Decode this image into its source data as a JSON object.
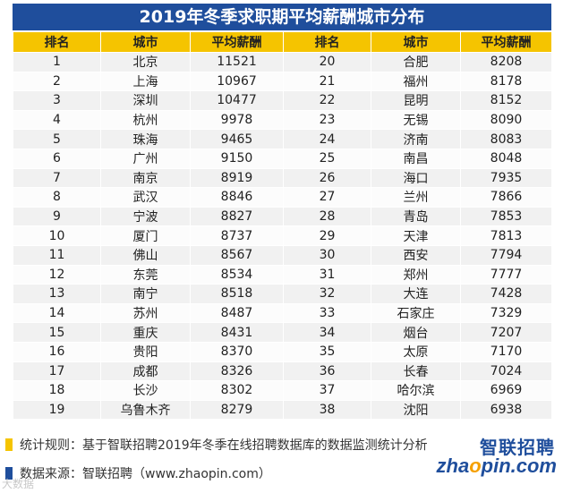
{
  "title": "2019年冬季求职期平均薪酬城市分布",
  "headers": [
    "排名",
    "城市",
    "平均薪酬",
    "排名",
    "城市",
    "平均薪酬"
  ],
  "rows": [
    {
      "rank_a": "1",
      "city_a": "北京",
      "salary_a": "11521",
      "rank_b": "20",
      "city_b": "合肥",
      "salary_b": "8208"
    },
    {
      "rank_a": "2",
      "city_a": "上海",
      "salary_a": "10967",
      "rank_b": "21",
      "city_b": "福州",
      "salary_b": "8178"
    },
    {
      "rank_a": "3",
      "city_a": "深圳",
      "salary_a": "10477",
      "rank_b": "22",
      "city_b": "昆明",
      "salary_b": "8152"
    },
    {
      "rank_a": "4",
      "city_a": "杭州",
      "salary_a": "9978",
      "rank_b": "23",
      "city_b": "无锡",
      "salary_b": "8090"
    },
    {
      "rank_a": "5",
      "city_a": "珠海",
      "salary_a": "9465",
      "rank_b": "24",
      "city_b": "济南",
      "salary_b": "8083"
    },
    {
      "rank_a": "6",
      "city_a": "广州",
      "salary_a": "9150",
      "rank_b": "25",
      "city_b": "南昌",
      "salary_b": "8048"
    },
    {
      "rank_a": "7",
      "city_a": "南京",
      "salary_a": "8919",
      "rank_b": "26",
      "city_b": "海口",
      "salary_b": "7935"
    },
    {
      "rank_a": "8",
      "city_a": "武汉",
      "salary_a": "8846",
      "rank_b": "27",
      "city_b": "兰州",
      "salary_b": "7866"
    },
    {
      "rank_a": "9",
      "city_a": "宁波",
      "salary_a": "8827",
      "rank_b": "28",
      "city_b": "青岛",
      "salary_b": "7853"
    },
    {
      "rank_a": "10",
      "city_a": "厦门",
      "salary_a": "8737",
      "rank_b": "29",
      "city_b": "天津",
      "salary_b": "7813"
    },
    {
      "rank_a": "11",
      "city_a": "佛山",
      "salary_a": "8567",
      "rank_b": "30",
      "city_b": "西安",
      "salary_b": "7794"
    },
    {
      "rank_a": "12",
      "city_a": "东莞",
      "salary_a": "8534",
      "rank_b": "31",
      "city_b": "郑州",
      "salary_b": "7777"
    },
    {
      "rank_a": "13",
      "city_a": "南宁",
      "salary_a": "8518",
      "rank_b": "32",
      "city_b": "大连",
      "salary_b": "7428"
    },
    {
      "rank_a": "14",
      "city_a": "苏州",
      "salary_a": "8487",
      "rank_b": "33",
      "city_b": "石家庄",
      "salary_b": "7329"
    },
    {
      "rank_a": "15",
      "city_a": "重庆",
      "salary_a": "8431",
      "rank_b": "34",
      "city_b": "烟台",
      "salary_b": "7207"
    },
    {
      "rank_a": "16",
      "city_a": "贵阳",
      "salary_a": "8370",
      "rank_b": "35",
      "city_b": "太原",
      "salary_b": "7170"
    },
    {
      "rank_a": "17",
      "city_a": "成都",
      "salary_a": "8326",
      "rank_b": "36",
      "city_b": "长春",
      "salary_b": "7024"
    },
    {
      "rank_a": "18",
      "city_a": "长沙",
      "salary_a": "8302",
      "rank_b": "37",
      "city_b": "哈尔滨",
      "salary_b": "6969"
    },
    {
      "rank_a": "19",
      "city_a": "乌鲁木齐",
      "salary_a": "8279",
      "rank_b": "38",
      "city_b": "沈阳",
      "salary_b": "6938"
    }
  ],
  "notes": {
    "method": "统计规则：基于智联招聘2019年冬季在线招聘数据库的数据监测统计分析",
    "source": "数据来源：智联招聘（www.zhaopin.com）"
  },
  "logo": {
    "cn": "智联招聘",
    "en_prefix": "zha",
    "en_o": "o",
    "en_suffix": "pin.com"
  },
  "watermark": "大数据",
  "colors": {
    "title_bg": "#1f4e9c",
    "header_bg": "#f5c400",
    "bullet_method": "#f5c400",
    "bullet_source": "#1f4e9c"
  }
}
